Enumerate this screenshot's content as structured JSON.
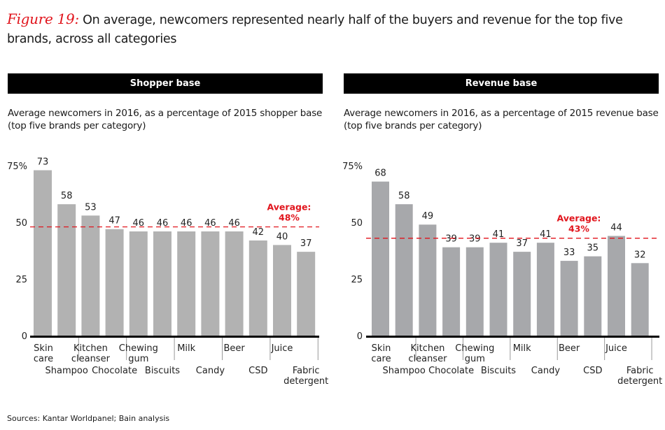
{
  "figure": {
    "number_label": "Figure 19:",
    "title": "On average, newcomers represented nearly half of the buyers and revenue for the top five brands, across all categories",
    "sources": "Sources: Kantar Worldpanel; Bain analysis"
  },
  "colors": {
    "bar": "#b2b2b2",
    "bar_right": "#a7a8ab",
    "average_line": "#e1141c",
    "axis": "#000000",
    "header_bg": "#000000"
  },
  "chart_data": [
    {
      "type": "bar",
      "header": "Shopper base",
      "title": "Average newcomers in 2016, as a percentage of 2015 shopper base",
      "subtitle": "(top five brands per category)",
      "categories": [
        "Skin care",
        "Shampoo",
        "Kitchen cleanser",
        "Chocolate",
        "Chewing gum",
        "Biscuits",
        "Milk",
        "Candy",
        "Beer",
        "CSD",
        "Juice",
        "Fabric detergent"
      ],
      "category_label_lines": [
        [
          "Skin",
          "care"
        ],
        [
          "Shampoo"
        ],
        [
          "Kitchen",
          "cleanser"
        ],
        [
          "Chocolate"
        ],
        [
          "Chewing",
          "gum"
        ],
        [
          "Biscuits"
        ],
        [
          "Milk"
        ],
        [
          "Candy"
        ],
        [
          "Beer"
        ],
        [
          "CSD"
        ],
        [
          "Juice"
        ],
        [
          "Fabric",
          "detergent"
        ]
      ],
      "values": [
        73,
        58,
        53,
        47,
        46,
        46,
        46,
        46,
        46,
        42,
        40,
        37
      ],
      "value_labels": [
        "73",
        "58",
        "53",
        "47",
        "46",
        "46",
        "46",
        "46",
        "46",
        "42",
        "40",
        "37"
      ],
      "average": 48,
      "average_label": [
        "Average:",
        "48%"
      ],
      "yticks": [
        0,
        25,
        50,
        75
      ],
      "ytick_labels": [
        "0",
        "25",
        "50",
        "75%"
      ],
      "ylim": [
        0,
        75
      ],
      "xlabel": "",
      "ylabel": "",
      "grid": false
    },
    {
      "type": "bar",
      "header": "Revenue base",
      "title": "Average newcomers in 2016, as a percentage of 2015 revenue base",
      "subtitle": "(top five brands per category)",
      "categories": [
        "Skin care",
        "Shampoo",
        "Kitchen cleanser",
        "Chocolate",
        "Chewing gum",
        "Biscuits",
        "Milk",
        "Candy",
        "Beer",
        "CSD",
        "Juice",
        "Fabric detergent"
      ],
      "category_label_lines": [
        [
          "Skin",
          "care"
        ],
        [
          "Shampoo"
        ],
        [
          "Kitchen",
          "cleanser"
        ],
        [
          "Chocolate"
        ],
        [
          "Chewing",
          "gum"
        ],
        [
          "Biscuits"
        ],
        [
          "Milk"
        ],
        [
          "Candy"
        ],
        [
          "Beer"
        ],
        [
          "CSD"
        ],
        [
          "Juice"
        ],
        [
          "Fabric",
          "detergent"
        ]
      ],
      "values": [
        68,
        58,
        49,
        39,
        39,
        41,
        37,
        41,
        33,
        35,
        44,
        32
      ],
      "value_labels": [
        "68",
        "58",
        "49",
        "39",
        "39",
        "41",
        "37",
        "41",
        "33",
        "35",
        "44",
        "32"
      ],
      "average": 43,
      "average_label": [
        "Average:",
        "43%"
      ],
      "yticks": [
        0,
        25,
        50,
        75
      ],
      "ytick_labels": [
        "0",
        "25",
        "50",
        "75%"
      ],
      "ylim": [
        0,
        75
      ],
      "xlabel": "",
      "ylabel": "",
      "grid": false
    }
  ]
}
